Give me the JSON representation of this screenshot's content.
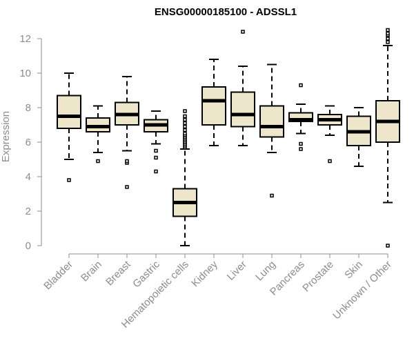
{
  "chart_data": {
    "type": "boxplot",
    "title": "ENSG00000185100 - ADSSL1",
    "xlabel": "",
    "ylabel": "Expression",
    "ylim": [
      0,
      12
    ],
    "yticks": [
      0,
      2,
      4,
      6,
      8,
      10,
      12
    ],
    "grid": false,
    "box_fill": "#ede6ca",
    "categories": [
      "Bladder",
      "Brain",
      "Breast",
      "Gastric",
      "Hematopoietic cells",
      "Kidney",
      "Liver",
      "Lung",
      "Pancreas",
      "Prostate",
      "Skin",
      "Unknown / Other"
    ],
    "boxes": [
      {
        "min": 5.0,
        "q1": 6.8,
        "median": 7.5,
        "q3": 8.7,
        "max": 10.0,
        "outliers": [
          3.8
        ]
      },
      {
        "min": 5.4,
        "q1": 6.6,
        "median": 6.9,
        "q3": 7.4,
        "max": 8.1,
        "outliers": [
          4.9
        ]
      },
      {
        "min": 5.5,
        "q1": 7.0,
        "median": 7.6,
        "q3": 8.3,
        "max": 9.8,
        "outliers": [
          4.8,
          4.9,
          3.4
        ]
      },
      {
        "min": 5.9,
        "q1": 6.6,
        "median": 7.0,
        "q3": 7.3,
        "max": 7.8,
        "outliers": [
          5.5,
          5.1,
          4.3
        ]
      },
      {
        "min": 0.0,
        "q1": 1.7,
        "median": 2.5,
        "q3": 3.3,
        "max": 5.6,
        "outliers": [
          5.7,
          5.8,
          5.9,
          6.0,
          6.1,
          6.2,
          6.3,
          6.4,
          6.5,
          6.7,
          6.9,
          7.1,
          7.3,
          7.5,
          7.8
        ]
      },
      {
        "min": 5.8,
        "q1": 7.0,
        "median": 8.4,
        "q3": 9.2,
        "max": 10.8,
        "outliers": []
      },
      {
        "min": 5.8,
        "q1": 6.9,
        "median": 7.6,
        "q3": 8.9,
        "max": 10.4,
        "outliers": [
          12.4
        ]
      },
      {
        "min": 5.4,
        "q1": 6.3,
        "median": 6.9,
        "q3": 8.1,
        "max": 10.5,
        "outliers": [
          2.9
        ]
      },
      {
        "min": 6.5,
        "q1": 7.2,
        "median": 7.3,
        "q3": 7.7,
        "max": 8.2,
        "outliers": [
          9.3,
          5.9,
          5.6
        ]
      },
      {
        "min": 6.4,
        "q1": 7.0,
        "median": 7.3,
        "q3": 7.6,
        "max": 8.1,
        "outliers": [
          4.9
        ]
      },
      {
        "min": 4.6,
        "q1": 5.8,
        "median": 6.6,
        "q3": 7.5,
        "max": 8.0,
        "outliers": []
      },
      {
        "min": 2.5,
        "q1": 6.0,
        "median": 7.2,
        "q3": 8.4,
        "max": 11.6,
        "outliers": [
          11.8,
          12.0,
          12.2,
          12.3,
          12.5,
          0.0
        ]
      }
    ]
  }
}
